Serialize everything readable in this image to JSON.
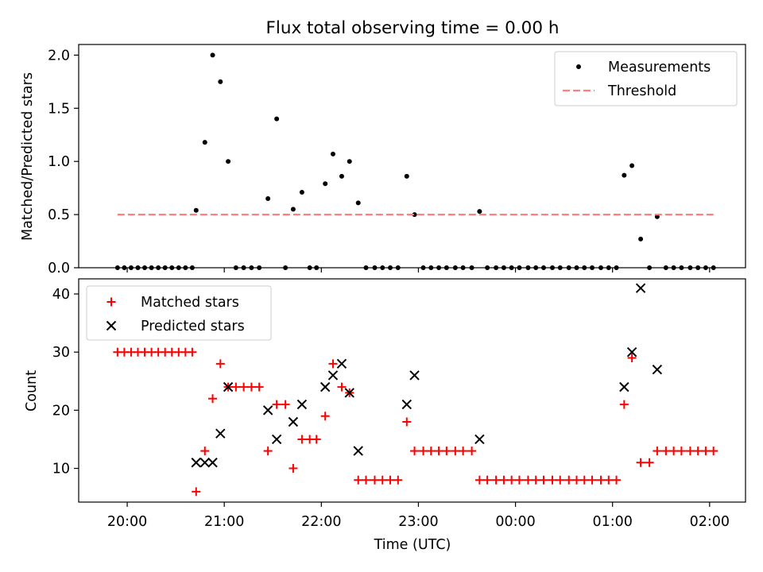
{
  "chart_data": [
    {
      "type": "scatter",
      "title": "Flux total observing time = 0.00 h",
      "xlabel": "",
      "ylabel": "Matched/Predicted stars",
      "ylim": [
        0,
        2.1
      ],
      "yticks": [
        "0.0",
        "0.5",
        "1.0",
        "1.5",
        "2.0"
      ],
      "xlim": [
        -0.5,
        6.37
      ],
      "xticks": [
        "20:00",
        "21:00",
        "22:00",
        "23:00",
        "00:00",
        "01:00",
        "02:00"
      ],
      "grid": false,
      "legend_position": "top-right",
      "series": [
        {
          "name": "Measurements",
          "kind": "points",
          "color": "#000000",
          "x": [
            -0.1,
            -0.03,
            0.04,
            0.11,
            0.18,
            0.25,
            0.32,
            0.39,
            0.46,
            0.53,
            0.6,
            0.67,
            0.71,
            0.8,
            0.88,
            0.96,
            1.04,
            1.12,
            1.2,
            1.28,
            1.36,
            1.45,
            1.54,
            1.63,
            1.71,
            1.8,
            1.88,
            1.95,
            2.04,
            2.12,
            2.21,
            2.29,
            2.38,
            2.46,
            2.55,
            2.63,
            2.71,
            2.79,
            2.88,
            2.96,
            3.05,
            3.13,
            3.21,
            3.29,
            3.38,
            3.46,
            3.55,
            3.63,
            3.71,
            3.8,
            3.88,
            3.96,
            4.04,
            4.13,
            4.21,
            4.29,
            4.38,
            4.46,
            4.55,
            4.63,
            4.71,
            4.79,
            4.88,
            4.96,
            5.04,
            5.12,
            5.2,
            5.29,
            5.38,
            5.46,
            5.55,
            5.63,
            5.71,
            5.8,
            5.88,
            5.96,
            6.04
          ],
          "y": [
            0,
            0,
            0,
            0,
            0,
            0,
            0,
            0,
            0,
            0,
            0,
            0,
            0.54,
            1.18,
            2.0,
            1.75,
            1.0,
            0,
            0,
            0,
            0,
            0.65,
            1.4,
            0,
            0.55,
            0.71,
            0,
            0,
            0.79,
            1.07,
            0.86,
            1.0,
            0.61,
            0,
            0,
            0,
            0,
            0,
            0.86,
            0.5,
            0,
            0,
            0,
            0,
            0,
            0,
            0,
            0.53,
            0,
            0,
            0,
            0,
            0,
            0,
            0,
            0,
            0,
            0,
            0,
            0,
            0,
            0,
            0,
            0,
            0,
            0.87,
            0.96,
            0.27,
            0,
            0.48,
            0,
            0,
            0,
            0,
            0,
            0,
            0
          ]
        },
        {
          "name": "Threshold",
          "kind": "dashed-line",
          "color": "#ff7f7f",
          "x": [
            -0.1,
            6.04
          ],
          "y": [
            0.5,
            0.5
          ]
        }
      ]
    },
    {
      "type": "scatter",
      "title": "",
      "xlabel": "Time (UTC)",
      "ylabel": "Count",
      "ylim": [
        4.2,
        42.6
      ],
      "yticks": [
        "10",
        "20",
        "30",
        "40"
      ],
      "xlim": [
        -0.5,
        6.37
      ],
      "xticks": [
        "20:00",
        "21:00",
        "22:00",
        "23:00",
        "00:00",
        "01:00",
        "02:00"
      ],
      "grid": false,
      "legend_position": "top-left",
      "series": [
        {
          "name": "Matched stars",
          "marker": "plus",
          "color": "#ff0000",
          "x": [
            -0.1,
            -0.03,
            0.04,
            0.11,
            0.18,
            0.25,
            0.32,
            0.39,
            0.46,
            0.53,
            0.6,
            0.67,
            0.71,
            0.8,
            0.88,
            0.96,
            1.04,
            1.12,
            1.2,
            1.28,
            1.36,
            1.45,
            1.54,
            1.63,
            1.71,
            1.8,
            1.88,
            1.95,
            2.04,
            2.12,
            2.21,
            2.29,
            2.38,
            2.46,
            2.55,
            2.63,
            2.71,
            2.79,
            2.88,
            2.96,
            3.05,
            3.13,
            3.21,
            3.29,
            3.38,
            3.46,
            3.55,
            3.63,
            3.71,
            3.8,
            3.88,
            3.96,
            4.04,
            4.13,
            4.21,
            4.29,
            4.38,
            4.46,
            4.55,
            4.63,
            4.71,
            4.79,
            4.88,
            4.96,
            5.04,
            5.12,
            5.2,
            5.29,
            5.38,
            5.46,
            5.55,
            5.63,
            5.71,
            5.8,
            5.88,
            5.96,
            6.04
          ],
          "y": [
            30,
            30,
            30,
            30,
            30,
            30,
            30,
            30,
            30,
            30,
            30,
            30,
            6,
            13,
            22,
            28,
            24,
            24,
            24,
            24,
            24,
            13,
            21,
            21,
            10,
            15,
            15,
            15,
            19,
            28,
            24,
            23,
            8,
            8,
            8,
            8,
            8,
            8,
            18,
            13,
            13,
            13,
            13,
            13,
            13,
            13,
            13,
            8,
            8,
            8,
            8,
            8,
            8,
            8,
            8,
            8,
            8,
            8,
            8,
            8,
            8,
            8,
            8,
            8,
            8,
            21,
            29,
            11,
            11,
            13,
            13,
            13,
            13,
            13,
            13,
            13,
            13
          ]
        },
        {
          "name": "Predicted stars",
          "marker": "cross",
          "color": "#000000",
          "x": [
            0.71,
            0.8,
            0.88,
            0.96,
            1.04,
            1.45,
            1.54,
            1.71,
            1.8,
            2.04,
            2.12,
            2.21,
            2.29,
            2.38,
            2.88,
            2.96,
            3.63,
            5.12,
            5.2,
            5.29,
            5.46
          ],
          "y": [
            11,
            11,
            11,
            16,
            24,
            20,
            15,
            18,
            21,
            24,
            26,
            28,
            23,
            13,
            21,
            26,
            15,
            24,
            30,
            41,
            27
          ]
        }
      ]
    }
  ]
}
